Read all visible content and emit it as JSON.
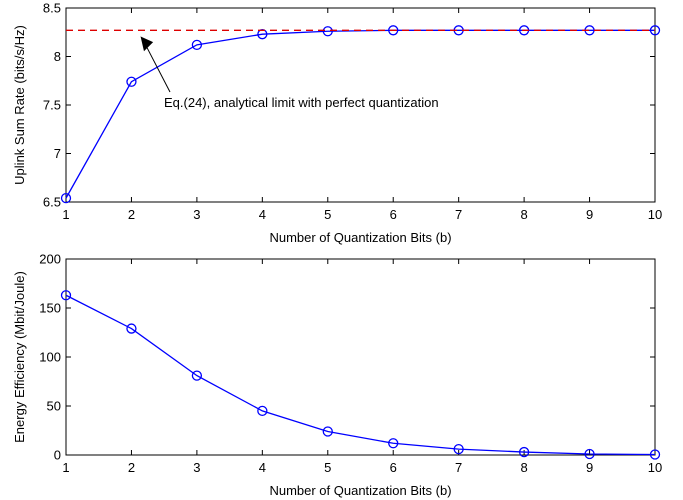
{
  "chart_data": [
    {
      "type": "line",
      "x": [
        1,
        2,
        3,
        4,
        5,
        6,
        7,
        8,
        9,
        10
      ],
      "series": [
        {
          "values": [
            6.54,
            7.74,
            8.12,
            8.23,
            8.26,
            8.27,
            8.27,
            8.27,
            8.27,
            8.27
          ],
          "color": "#0000ff",
          "marker": "circle",
          "line": "solid"
        },
        {
          "values": [
            8.27,
            8.27,
            8.27,
            8.27,
            8.27,
            8.27,
            8.27,
            8.27,
            8.27,
            8.27
          ],
          "color": "#dd0000",
          "line": "dashed"
        }
      ],
      "xlabel": "Number of Quantization Bits (b)",
      "ylabel": "Uplink Sum Rate (bits/s/Hz)",
      "xlim": [
        1,
        10
      ],
      "ylim": [
        6.5,
        8.5
      ],
      "xticks": [
        "1",
        "2",
        "3",
        "4",
        "5",
        "6",
        "7",
        "8",
        "9",
        "10"
      ],
      "yticks": [
        "6.5",
        "7",
        "7.5",
        "8",
        "8.5"
      ],
      "grid": false,
      "annotation": {
        "text": "Eq.(24), analytical limit with perfect quantization",
        "points_to": {
          "x": 2.15,
          "y": 8.27
        }
      }
    },
    {
      "type": "line",
      "x": [
        1,
        2,
        3,
        4,
        5,
        6,
        7,
        8,
        9,
        10
      ],
      "series": [
        {
          "values": [
            163,
            129,
            81,
            45,
            24,
            12,
            6,
            3,
            1,
            0.5
          ],
          "color": "#0000ff",
          "marker": "circle",
          "line": "solid"
        }
      ],
      "xlabel": "Number of Quantization Bits (b)",
      "ylabel": "Energy Efficiency (Mbit/Joule)",
      "xlim": [
        1,
        10
      ],
      "ylim": [
        0,
        200
      ],
      "xticks": [
        "1",
        "2",
        "3",
        "4",
        "5",
        "6",
        "7",
        "8",
        "9",
        "10"
      ],
      "yticks": [
        "0",
        "50",
        "100",
        "150",
        "200"
      ],
      "grid": false
    }
  ]
}
